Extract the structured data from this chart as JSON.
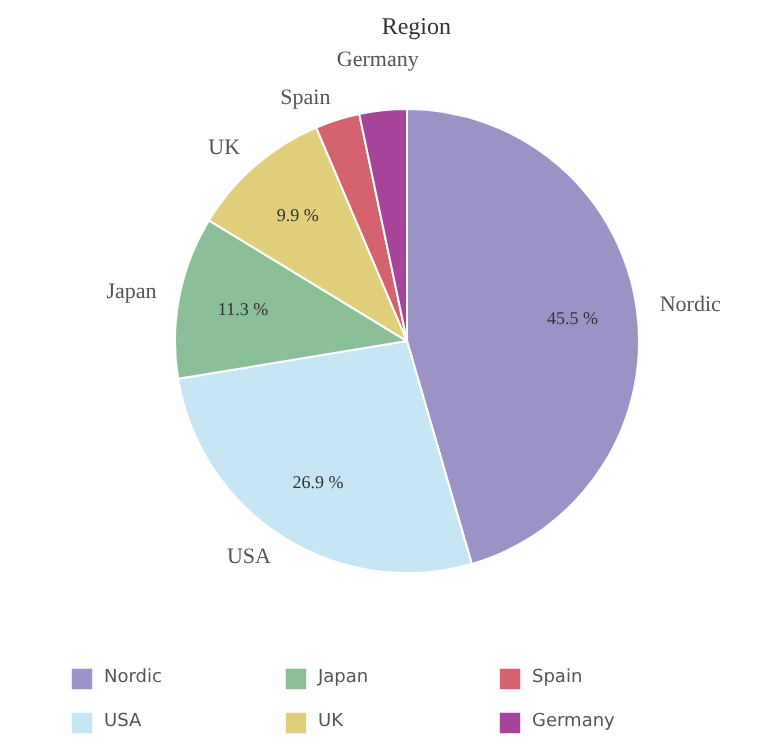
{
  "chart_data": {
    "type": "pie",
    "title": "Region",
    "categories": [
      "Nordic",
      "USA",
      "Japan",
      "UK",
      "Spain",
      "Germany"
    ],
    "values": [
      45.5,
      26.9,
      11.3,
      9.9,
      3.1,
      3.3
    ],
    "colors": [
      "#9b92c6",
      "#c6e6f5",
      "#8bbf98",
      "#e1cf7c",
      "#d4636f",
      "#a5449a"
    ],
    "value_labels": [
      "45.5 %",
      "26.9 %",
      "11.3 %",
      "9.9 %",
      null,
      null
    ],
    "legend": "bottom"
  }
}
